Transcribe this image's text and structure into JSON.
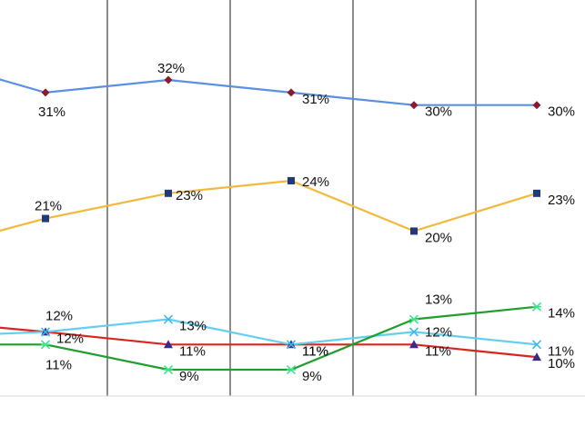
{
  "chart_data": {
    "type": "line",
    "categories": [
      "",
      "",
      "",
      "",
      "",
      ""
    ],
    "grid": "vertical gridlines between categories",
    "legend": "none visible",
    "series": [
      {
        "color": "#5B8FE0",
        "marker": "diamond",
        "marker_color": "#8B1A2E",
        "values": [
          null,
          31,
          32,
          31,
          30,
          30
        ],
        "labels": [
          "",
          "31%",
          "32%",
          "31%",
          "30%",
          "30%"
        ]
      },
      {
        "color": "#F2B93B",
        "marker": "square",
        "marker_color": "#1F3A7A",
        "values": [
          null,
          21,
          23,
          24,
          20,
          23
        ],
        "labels": [
          "",
          "21%",
          "23%",
          "24%",
          "20%",
          "23%"
        ]
      },
      {
        "color": "#D7261E",
        "marker": "triangle",
        "marker_color": "#3A2A86",
        "values": [
          null,
          12,
          11,
          11,
          11,
          10
        ],
        "labels": [
          "",
          "12%",
          "11%",
          "11%",
          "11%",
          "10%"
        ]
      },
      {
        "color": "#62CFEF",
        "marker": "x",
        "marker_color": "#3FB8E6",
        "values": [
          null,
          12,
          13,
          11,
          12,
          11
        ],
        "labels": [
          "",
          "12%",
          "13%",
          "11%",
          "12%",
          "11%"
        ]
      },
      {
        "color": "#1F9E2C",
        "marker": "asterisk",
        "marker_color": "#3BE38C",
        "values": [
          null,
          11,
          9,
          9,
          13,
          14
        ],
        "labels": [
          "",
          "11%",
          "9%",
          "9%",
          "13%",
          "14%"
        ]
      }
    ]
  }
}
